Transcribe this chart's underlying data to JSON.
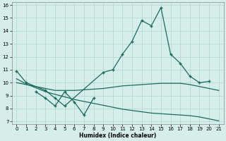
{
  "xlabel": "Humidex (Indice chaleur)",
  "xlim": [
    -0.5,
    21.5
  ],
  "ylim": [
    6.8,
    16.2
  ],
  "yticks": [
    7,
    8,
    9,
    10,
    11,
    12,
    13,
    14,
    15,
    16
  ],
  "xticks": [
    0,
    1,
    2,
    3,
    4,
    5,
    6,
    7,
    8,
    9,
    10,
    11,
    12,
    13,
    14,
    15,
    16,
    17,
    18,
    19,
    20,
    21
  ],
  "bg_color": "#d6eeea",
  "grid_color": "#b8d8d4",
  "line_color": "#1a6b5e",
  "line_width": 0.9,
  "marker": "+",
  "marker_size": 3.5,
  "lines": [
    {
      "x": [
        0,
        1,
        3,
        4,
        5,
        9,
        10,
        11,
        12,
        13,
        14,
        15,
        16,
        17,
        18,
        19,
        20
      ],
      "y": [
        10.9,
        10.0,
        9.4,
        8.8,
        8.2,
        10.8,
        11.0,
        12.2,
        13.2,
        14.8,
        14.4,
        15.8,
        12.2,
        11.5,
        10.5,
        10.0,
        10.1
      ],
      "has_markers": true
    },
    {
      "x": [
        2,
        3,
        4,
        5,
        6,
        7,
        8
      ],
      "y": [
        9.3,
        8.8,
        8.2,
        9.3,
        8.5,
        7.5,
        8.8
      ],
      "has_markers": true
    },
    {
      "x": [
        0,
        1,
        2,
        3,
        4,
        5,
        6,
        7,
        8,
        9,
        10,
        11,
        12,
        13,
        14,
        15,
        16,
        17,
        18,
        19,
        20,
        21
      ],
      "y": [
        10.0,
        9.85,
        9.7,
        9.55,
        9.4,
        9.4,
        9.4,
        9.45,
        9.5,
        9.55,
        9.65,
        9.75,
        9.8,
        9.85,
        9.9,
        9.95,
        9.95,
        9.95,
        9.85,
        9.7,
        9.55,
        9.4
      ],
      "has_markers": false
    },
    {
      "x": [
        0,
        1,
        2,
        3,
        4,
        5,
        6,
        7,
        8,
        9,
        10,
        11,
        12,
        13,
        14,
        15,
        16,
        17,
        18,
        19,
        20,
        21
      ],
      "y": [
        10.3,
        9.9,
        9.6,
        9.3,
        9.1,
        8.9,
        8.7,
        8.55,
        8.4,
        8.25,
        8.1,
        7.95,
        7.85,
        7.75,
        7.65,
        7.6,
        7.55,
        7.5,
        7.45,
        7.35,
        7.2,
        7.05
      ],
      "has_markers": false
    }
  ]
}
